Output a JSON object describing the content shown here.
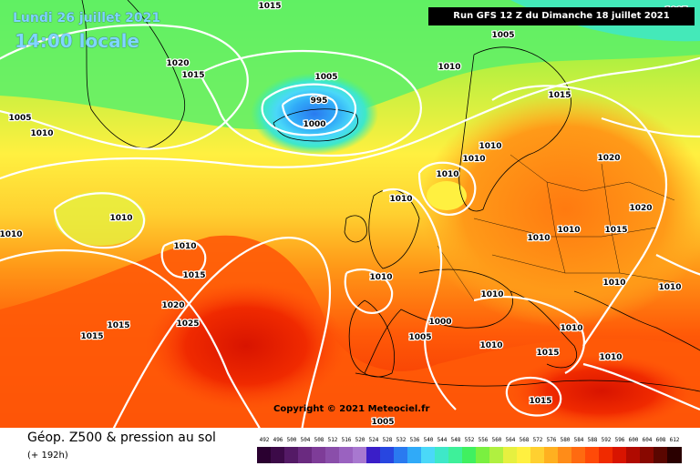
{
  "header": {
    "date": "Lundi 26 juillet 2021",
    "time": "14:00 locale",
    "run": "Run GFS 12 Z du Dimanche 18 juillet 2021"
  },
  "copyright": "Copyright © 2021 Meteociel.fr",
  "footer": {
    "product": "Géop. Z500 & pression au sol",
    "lead_time": "(+ 192h)"
  },
  "legend": [
    {
      "label": "492",
      "color": "#2a0030"
    },
    {
      "label": "496",
      "color": "#3c0a48"
    },
    {
      "label": "500",
      "color": "#541a66"
    },
    {
      "label": "504",
      "color": "#6a2a80"
    },
    {
      "label": "508",
      "color": "#7e3c98"
    },
    {
      "label": "512",
      "color": "#8a4eaa"
    },
    {
      "label": "516",
      "color": "#9a62c0"
    },
    {
      "label": "520",
      "color": "#a878d0"
    },
    {
      "label": "524",
      "color": "#3a1ec8"
    },
    {
      "label": "528",
      "color": "#2846e0"
    },
    {
      "label": "532",
      "color": "#2a7af0"
    },
    {
      "label": "536",
      "color": "#30aaf8"
    },
    {
      "label": "540",
      "color": "#4ad8f8"
    },
    {
      "label": "544",
      "color": "#3ee8c8"
    },
    {
      "label": "548",
      "color": "#3ef09a"
    },
    {
      "label": "552",
      "color": "#40f060"
    },
    {
      "label": "556",
      "color": "#7af040"
    },
    {
      "label": "560",
      "color": "#b0f040"
    },
    {
      "label": "564",
      "color": "#e6f040"
    },
    {
      "label": "568",
      "color": "#fff040"
    },
    {
      "label": "572",
      "color": "#ffd030"
    },
    {
      "label": "576",
      "color": "#ffb020"
    },
    {
      "label": "580",
      "color": "#ff8c18"
    },
    {
      "label": "584",
      "color": "#ff6a10"
    },
    {
      "label": "588",
      "color": "#ff4a08"
    },
    {
      "label": "592",
      "color": "#f02a00"
    },
    {
      "label": "596",
      "color": "#d81400"
    },
    {
      "label": "600",
      "color": "#b00a00"
    },
    {
      "label": "604",
      "color": "#880800"
    },
    {
      "label": "608",
      "color": "#5a0600"
    },
    {
      "label": "612",
      "color": "#2a0000"
    }
  ],
  "isobar_labels": [
    {
      "text": "1015"
    },
    {
      "text": "1005"
    },
    {
      "text": "1005"
    },
    {
      "text": "1020"
    },
    {
      "text": "1015"
    },
    {
      "text": "1005"
    },
    {
      "text": "1010"
    },
    {
      "text": "1005"
    },
    {
      "text": "995"
    },
    {
      "text": "1000"
    },
    {
      "text": "1010"
    },
    {
      "text": "1015"
    },
    {
      "text": "1010"
    },
    {
      "text": "1010"
    },
    {
      "text": "1010"
    },
    {
      "text": "1010"
    },
    {
      "text": "1020"
    },
    {
      "text": "1020"
    },
    {
      "text": "1010"
    },
    {
      "text": "1010"
    },
    {
      "text": "1010"
    },
    {
      "text": "1015"
    },
    {
      "text": "1010"
    },
    {
      "text": "1015"
    },
    {
      "text": "1010"
    },
    {
      "text": "1010"
    },
    {
      "text": "1020"
    },
    {
      "text": "1025"
    },
    {
      "text": "1015"
    },
    {
      "text": "1015"
    },
    {
      "text": "1010"
    },
    {
      "text": "1010"
    },
    {
      "text": "1000"
    },
    {
      "text": "1005"
    },
    {
      "text": "1010"
    },
    {
      "text": "1010"
    },
    {
      "text": "1015"
    },
    {
      "text": "1010"
    },
    {
      "text": "1010"
    },
    {
      "text": "1015"
    },
    {
      "text": "1005"
    }
  ]
}
